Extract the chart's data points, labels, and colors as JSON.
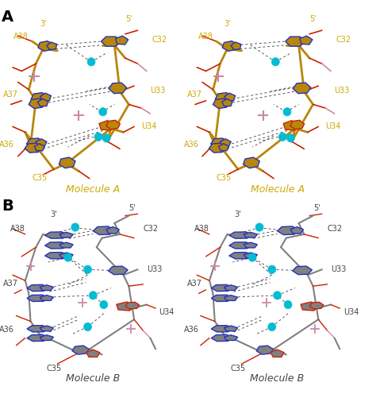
{
  "fig_width": 4.74,
  "fig_height": 4.96,
  "dpi": 100,
  "background_color": "#ffffff",
  "panel_A_label": "A",
  "panel_B_label": "B",
  "panel_label_fontsize": 14,
  "panel_label_weight": "bold",
  "gold_color": "#b8860b",
  "gray_color": "#808080",
  "cyan_color": "#00bcd4",
  "red_color": "#cc2200",
  "blue_color": "#2233bb",
  "pink_color": "#cc88aa",
  "label_color_A": "#ccaa00",
  "label_color_B": "#444444",
  "molecule_A_title": "Molecule A",
  "molecule_B_title": "Molecule B",
  "prime5": "5'",
  "prime3": "3'",
  "title_fontsize": 9,
  "res_label_fontsize": 7,
  "prime_fontsize": 7,
  "dashed_line_color": "#555555",
  "dashed_lw": 0.7
}
